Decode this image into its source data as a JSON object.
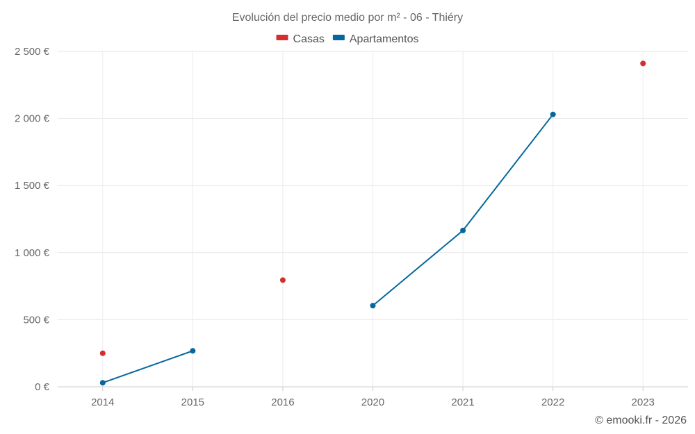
{
  "chart_data": {
    "type": "line",
    "title": "Evolución del precio medio por m² - 06 - Thiéry",
    "categories": [
      "2014",
      "2015",
      "2016",
      "2020",
      "2021",
      "2022",
      "2023"
    ],
    "series": [
      {
        "name": "Casas",
        "color": "#d32f2f",
        "values": [
          250,
          null,
          795,
          null,
          null,
          null,
          2410
        ]
      },
      {
        "name": "Apartamentos",
        "color": "#05679c",
        "values": [
          30,
          268,
          null,
          605,
          1165,
          2030,
          null
        ]
      }
    ],
    "ylim": [
      0,
      2500
    ],
    "yticks": [
      0,
      500,
      1000,
      1500,
      2000,
      2500
    ],
    "ytick_labels": [
      "0 €",
      "500 €",
      "1 000 €",
      "1 500 €",
      "2 000 €",
      "2 500 €"
    ],
    "xlabel": "",
    "ylabel": "",
    "grid": true,
    "legend_position": "top-center"
  },
  "footer": {
    "copyright": "© emooki.fr - 2026"
  }
}
